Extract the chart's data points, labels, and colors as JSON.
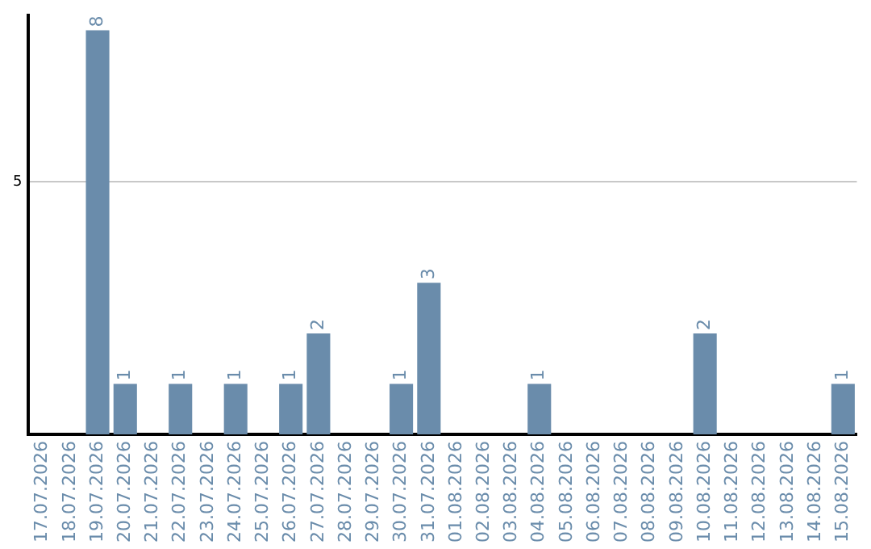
{
  "chart_data": {
    "type": "bar",
    "categories": [
      "17.07.2026",
      "18.07.2026",
      "19.07.2026",
      "20.07.2026",
      "21.07.2026",
      "22.07.2026",
      "23.07.2026",
      "24.07.2026",
      "25.07.2026",
      "26.07.2026",
      "27.07.2026",
      "28.07.2026",
      "29.07.2026",
      "30.07.2026",
      "31.07.2026",
      "01.08.2026",
      "02.08.2026",
      "03.08.2026",
      "04.08.2026",
      "05.08.2026",
      "06.08.2026",
      "07.08.2026",
      "08.08.2026",
      "09.08.2026",
      "10.08.2026",
      "11.08.2026",
      "12.08.2026",
      "13.08.2026",
      "14.08.2026",
      "15.08.2026"
    ],
    "values": [
      0,
      0,
      8,
      1,
      0,
      1,
      0,
      1,
      0,
      1,
      2,
      0,
      0,
      1,
      3,
      0,
      0,
      0,
      1,
      0,
      0,
      0,
      0,
      0,
      2,
      0,
      0,
      0,
      0,
      1
    ],
    "value_labels": [
      null,
      null,
      "8",
      "1",
      null,
      "1",
      null,
      "1",
      null,
      "1",
      "2",
      null,
      null,
      "1",
      "3",
      null,
      null,
      null,
      "1",
      null,
      null,
      null,
      null,
      null,
      "2",
      null,
      null,
      null,
      null,
      "1"
    ],
    "color": "#6a8cab",
    "ylim": [
      0,
      8.3
    ],
    "yticks": [
      5
    ],
    "grid": "y",
    "legend": false
  }
}
